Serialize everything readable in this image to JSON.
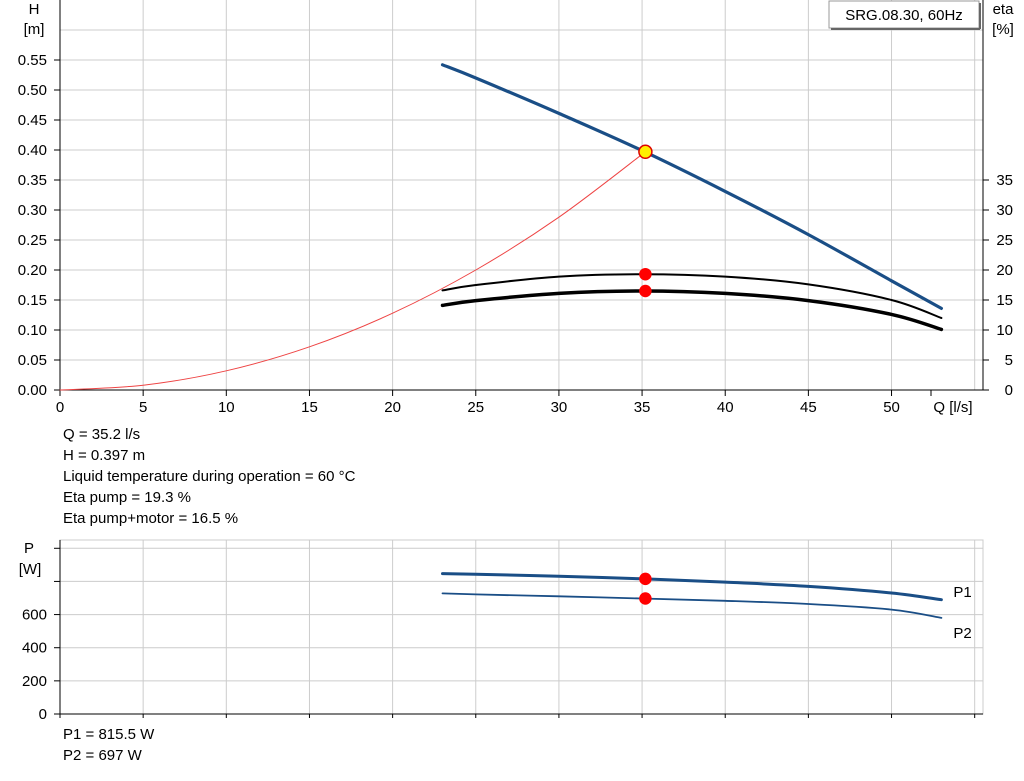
{
  "chart_data": [
    {
      "type": "line",
      "name": "head-efficiency",
      "legend": "SRG.08.30, 60Hz",
      "legend_placement": "top-right",
      "x_axis": {
        "label": "Q [l/s]",
        "min": 0,
        "max": 55.5,
        "ticks": [
          0,
          5,
          10,
          15,
          20,
          25,
          30,
          35,
          40,
          45,
          50
        ],
        "grid_x": [
          0,
          5,
          10,
          15,
          20,
          25,
          30,
          35,
          40,
          45,
          50,
          55
        ]
      },
      "y_left": {
        "label_top": "H",
        "label_unit": "[m]",
        "min": 0,
        "max": 0.65,
        "ticks": [
          0,
          0.05,
          0.1,
          0.15,
          0.2,
          0.25,
          0.3,
          0.35,
          0.4,
          0.45,
          0.5,
          0.55
        ],
        "tick_labels": [
          "0.00",
          "0.05",
          "0.10",
          "0.15",
          "0.20",
          "0.25",
          "0.30",
          "0.35",
          "0.40",
          "0.45",
          "0.50",
          "0.55"
        ]
      },
      "y_right": {
        "label_top": "eta",
        "label_unit": "[%]",
        "min": 0,
        "max": 65,
        "ticks": [
          0,
          5,
          10,
          15,
          20,
          25,
          30,
          35
        ],
        "tick_labels": [
          "0",
          "5",
          "10",
          "15",
          "20",
          "25",
          "30",
          "35"
        ]
      },
      "grid": true,
      "series": [
        {
          "key": "head",
          "axis": "left",
          "color": "#1a4e86",
          "width": 3.2,
          "x": [
            23,
            25,
            30,
            35,
            40,
            45,
            50,
            53
          ],
          "y": [
            0.542,
            0.52,
            0.461,
            0.399,
            0.331,
            0.259,
            0.182,
            0.136
          ]
        },
        {
          "key": "eta-pump",
          "axis": "right",
          "color": "#000000",
          "width": 2,
          "x": [
            23,
            25,
            30,
            35,
            40,
            45,
            50,
            53
          ],
          "y": [
            16.6,
            17.5,
            18.9,
            19.3,
            18.9,
            17.6,
            15.0,
            12.0
          ]
        },
        {
          "key": "eta-pump-motor",
          "axis": "right",
          "color": "#000000",
          "width": 3.5,
          "x": [
            23,
            25,
            30,
            35,
            40,
            45,
            50,
            53
          ],
          "y": [
            14.1,
            14.9,
            16.1,
            16.5,
            16.1,
            14.9,
            12.6,
            10.1
          ]
        },
        {
          "key": "system-curve",
          "axis": "left",
          "color": "#ee4444",
          "width": 1,
          "x": [
            0,
            5,
            10,
            15,
            20,
            25,
            30,
            35.2
          ],
          "y": [
            0,
            0.008,
            0.032,
            0.072,
            0.128,
            0.2,
            0.288,
            0.397
          ]
        }
      ],
      "points": [
        {
          "key": "duty-point",
          "x": 35.2,
          "y": 0.397,
          "axis": "left",
          "fill": "#ffee00",
          "stroke": "#dd0000"
        },
        {
          "key": "eta-pump-point",
          "x": 35.2,
          "y": 19.3,
          "axis": "right",
          "fill": "#ff0000",
          "stroke": "#ff0000"
        },
        {
          "key": "eta-pump-motor-point",
          "x": 35.2,
          "y": 16.5,
          "axis": "right",
          "fill": "#ff0000",
          "stroke": "#ff0000"
        }
      ]
    },
    {
      "type": "line",
      "name": "power",
      "x_axis": {
        "min": 0,
        "max": 55.5,
        "grid_x": [
          0,
          5,
          10,
          15,
          20,
          25,
          30,
          35,
          40,
          45,
          50,
          55
        ]
      },
      "y_left": {
        "label_top": "P",
        "label_unit": "[W]",
        "min": 0,
        "max": 1050,
        "ticks": [
          0,
          200,
          400,
          600,
          800,
          1000
        ],
        "tick_labels": [
          "0",
          "200",
          "400",
          "600",
          "",
          ""
        ]
      },
      "grid": true,
      "series": [
        {
          "key": "P1",
          "name": "P1",
          "color": "#1a4e86",
          "width": 3,
          "x": [
            23,
            25,
            30,
            35,
            40,
            45,
            50,
            53
          ],
          "y": [
            847,
            843,
            831,
            816,
            796,
            770,
            730,
            690
          ]
        },
        {
          "key": "P2",
          "name": "P2",
          "color": "#1a4e86",
          "width": 1.8,
          "x": [
            23,
            25,
            30,
            35,
            40,
            45,
            50,
            53
          ],
          "y": [
            728,
            722,
            710,
            697,
            683,
            664,
            630,
            580
          ]
        }
      ],
      "points": [
        {
          "key": "P1-point",
          "x": 35.2,
          "y": 815.5,
          "fill": "#ff0000",
          "stroke": "#ff0000"
        },
        {
          "key": "P2-point",
          "x": 35.2,
          "y": 697,
          "fill": "#ff0000",
          "stroke": "#ff0000"
        }
      ]
    }
  ],
  "info": {
    "q": "Q = 35.2 l/s",
    "h": "H = 0.397 m",
    "temp": "Liquid temperature during operation = 60 °C",
    "eta_pump": "Eta pump = 19.3 %",
    "eta_pump_motor": "Eta pump+motor = 16.5 %",
    "p1": "P1 = 815.5 W",
    "p2": "P2 = 697 W"
  },
  "colors": {
    "grid": "#cccccc",
    "curve": "#1a4e86",
    "marker": "#ff0000",
    "system": "#ee4444"
  }
}
